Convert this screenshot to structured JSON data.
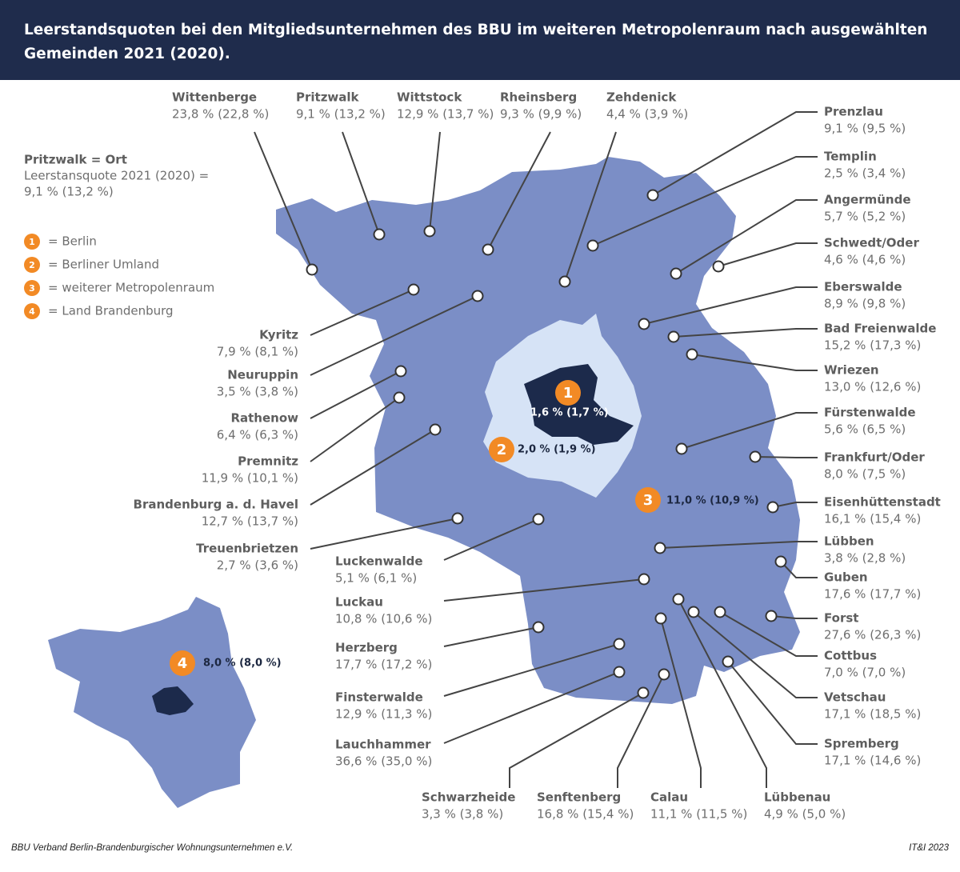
{
  "header": {
    "title_lines": [
      "Leerstandsquoten bei den Mitgliedsunternehmen des BBU im weiteren Metropolenraum nach ausgewählten",
      "Gemeinden 2021 (2020)."
    ]
  },
  "legend": {
    "example_lines": [
      "Pritzwalk = Ort",
      "Leerstansquote 2021 (2020) =",
      "9,1 % (13,2 %)"
    ],
    "items": [
      {
        "badge": "1",
        "label": "= Berlin"
      },
      {
        "badge": "2",
        "label": "= Berliner Umland"
      },
      {
        "badge": "3",
        "label": "= weiterer Metropolenraum"
      },
      {
        "badge": "4",
        "label": "= Land Brandenburg"
      }
    ]
  },
  "regions": [
    {
      "badge": "1",
      "value": "1,6 % (1,7 %)"
    },
    {
      "badge": "2",
      "value": "2,0 % (1,9 %)"
    },
    {
      "badge": "3",
      "value": "11,0 % (10,9 %)"
    },
    {
      "badge": "4",
      "value": "8,0 % (8,0 %)"
    }
  ],
  "places": [
    {
      "name": "Wittenberge",
      "value": "23,8 % (22,8 %)"
    },
    {
      "name": "Pritzwalk",
      "value": "9,1 % (13,2 %)"
    },
    {
      "name": "Wittstock",
      "value": "12,9 % (13,7 %)"
    },
    {
      "name": "Rheinsberg",
      "value": "9,3 % (9,9 %)"
    },
    {
      "name": "Zehdenick",
      "value": "4,4 % (3,9 %)"
    },
    {
      "name": "Prenzlau",
      "value": "9,1 % (9,5 %)"
    },
    {
      "name": "Templin",
      "value": "2,5 % (3,4 %)"
    },
    {
      "name": "Angermünde",
      "value": "5,7 % (5,2 %)"
    },
    {
      "name": "Schwedt/Oder",
      "value": "4,6 % (4,6 %)"
    },
    {
      "name": "Eberswalde",
      "value": "8,9 % (9,8 %)"
    },
    {
      "name": "Bad Freienwalde",
      "value": "15,2 % (17,3 %)"
    },
    {
      "name": "Wriezen",
      "value": "13,0 % (12,6 %)"
    },
    {
      "name": "Fürstenwalde",
      "value": "5,6 % (6,5 %)"
    },
    {
      "name": "Frankfurt/Oder",
      "value": "8,0 % (7,5 %)"
    },
    {
      "name": "Eisenhüttenstadt",
      "value": "16,1 % (15,4 %)"
    },
    {
      "name": "Lübben",
      "value": "3,8 % (2,8 %)"
    },
    {
      "name": "Guben",
      "value": "17,6 % (17,7 %)"
    },
    {
      "name": "Forst",
      "value": "27,6 % (26,3 %)"
    },
    {
      "name": "Cottbus",
      "value": "7,0 % (7,0 %)"
    },
    {
      "name": "Vetschau",
      "value": "17,1 % (18,5 %)"
    },
    {
      "name": "Spremberg",
      "value": "17,1 % (14,6 %)"
    },
    {
      "name": "Schwarzheide",
      "value": "3,3 % (3,8 %)"
    },
    {
      "name": "Senftenberg",
      "value": "16,8 % (15,4 %)"
    },
    {
      "name": "Calau",
      "value": "11,1 % (11,5 %)"
    },
    {
      "name": "Lübbenau",
      "value": "4,9 % (5,0 %)"
    },
    {
      "name": "Kyritz",
      "value": "7,9 % (8,1 %)"
    },
    {
      "name": "Neuruppin",
      "value": "3,5 % (3,8 %)"
    },
    {
      "name": "Rathenow",
      "value": "6,4 % (6,3 %)"
    },
    {
      "name": "Premnitz",
      "value": "11,9 % (10,1 %)"
    },
    {
      "name": "Brandenburg a. d. Havel",
      "value": "12,7 % (13,7 %)"
    },
    {
      "name": "Treuenbrietzen",
      "value": "2,7 % (3,6 %)"
    },
    {
      "name": "Luckenwalde",
      "value": "5,1 % (6,1 %)"
    },
    {
      "name": "Luckau",
      "value": "10,8 % (10,6 %)"
    },
    {
      "name": "Herzberg",
      "value": "17,7 % (17,2 %)"
    },
    {
      "name": "Finsterwalde",
      "value": "12,9 % (11,3 %)"
    },
    {
      "name": "Lauchhammer",
      "value": "36,6 % (35,0 %)"
    }
  ],
  "footer": {
    "source": "BBU Verband Berlin-Brandenburgischer Wohnungsunternehmen e.V.",
    "credit": "IT&I 2023"
  }
}
